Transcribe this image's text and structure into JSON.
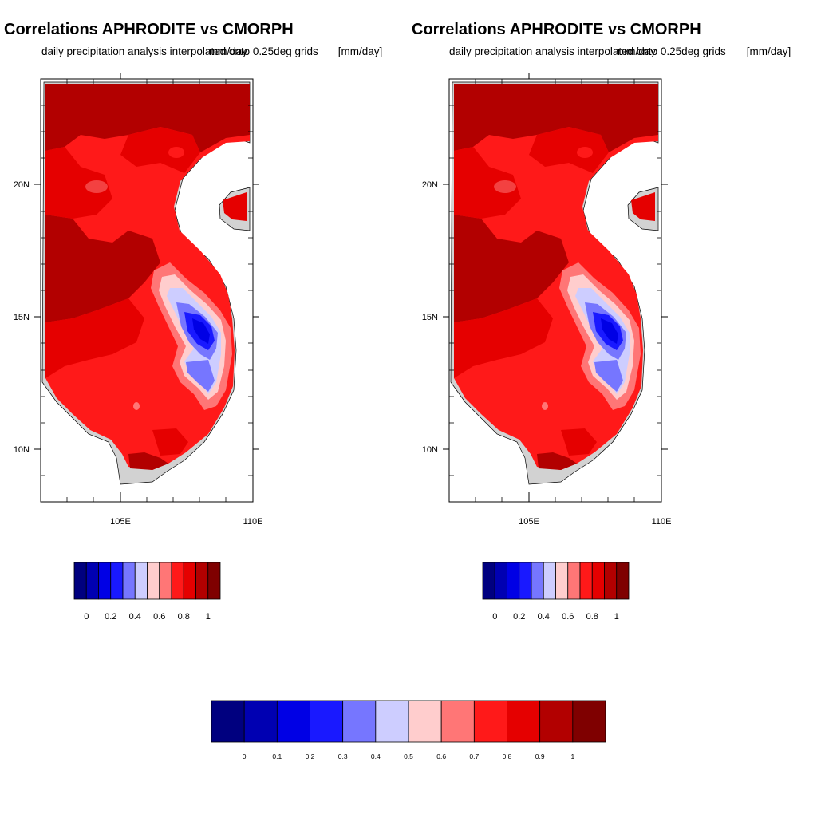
{
  "panels": [
    {
      "title": "Correlations APHRODITE vs CMORPH",
      "subtitle": "daily precipitation analysis interpolated onto 0.25deg grids",
      "left_label": "",
      "right_label": "mm/day",
      "unit_overlay": "[mm/day]"
    },
    {
      "title": "Correlations APHRODITE vs CMORPH",
      "subtitle": "daily precipitation analysis interpolated onto 0.25deg grids",
      "left_label": "",
      "right_label": "mm/day",
      "unit_overlay": "[mm/day]"
    }
  ],
  "map": {
    "lon_range": [
      102,
      110
    ],
    "lat_range": [
      8,
      24
    ],
    "lon_ticks": [
      {
        "value": 105,
        "label": "105E"
      },
      {
        "value": 110,
        "label": "110E"
      }
    ],
    "lat_ticks": [
      {
        "value": 10,
        "label": "10N"
      },
      {
        "value": 15,
        "label": "15N"
      },
      {
        "value": 20,
        "label": "20N"
      }
    ],
    "land_color": "#d2d2d2",
    "ocean_color": "#ffffff"
  },
  "colorbar": {
    "colors": [
      "#00007f",
      "#0000b2",
      "#0000e5",
      "#1919ff",
      "#7676ff",
      "#cdcdff",
      "#ffcdcd",
      "#ff7676",
      "#ff1919",
      "#e50000",
      "#b20000",
      "#7f0000"
    ],
    "small_labels": [
      "0",
      "0.2",
      "0.4",
      "0.6",
      "0.8",
      "1"
    ],
    "main_labels": [
      "0",
      "0.1",
      "0.2",
      "0.3",
      "0.4",
      "0.5",
      "0.6",
      "0.7",
      "0.8",
      "0.9",
      "1"
    ]
  }
}
